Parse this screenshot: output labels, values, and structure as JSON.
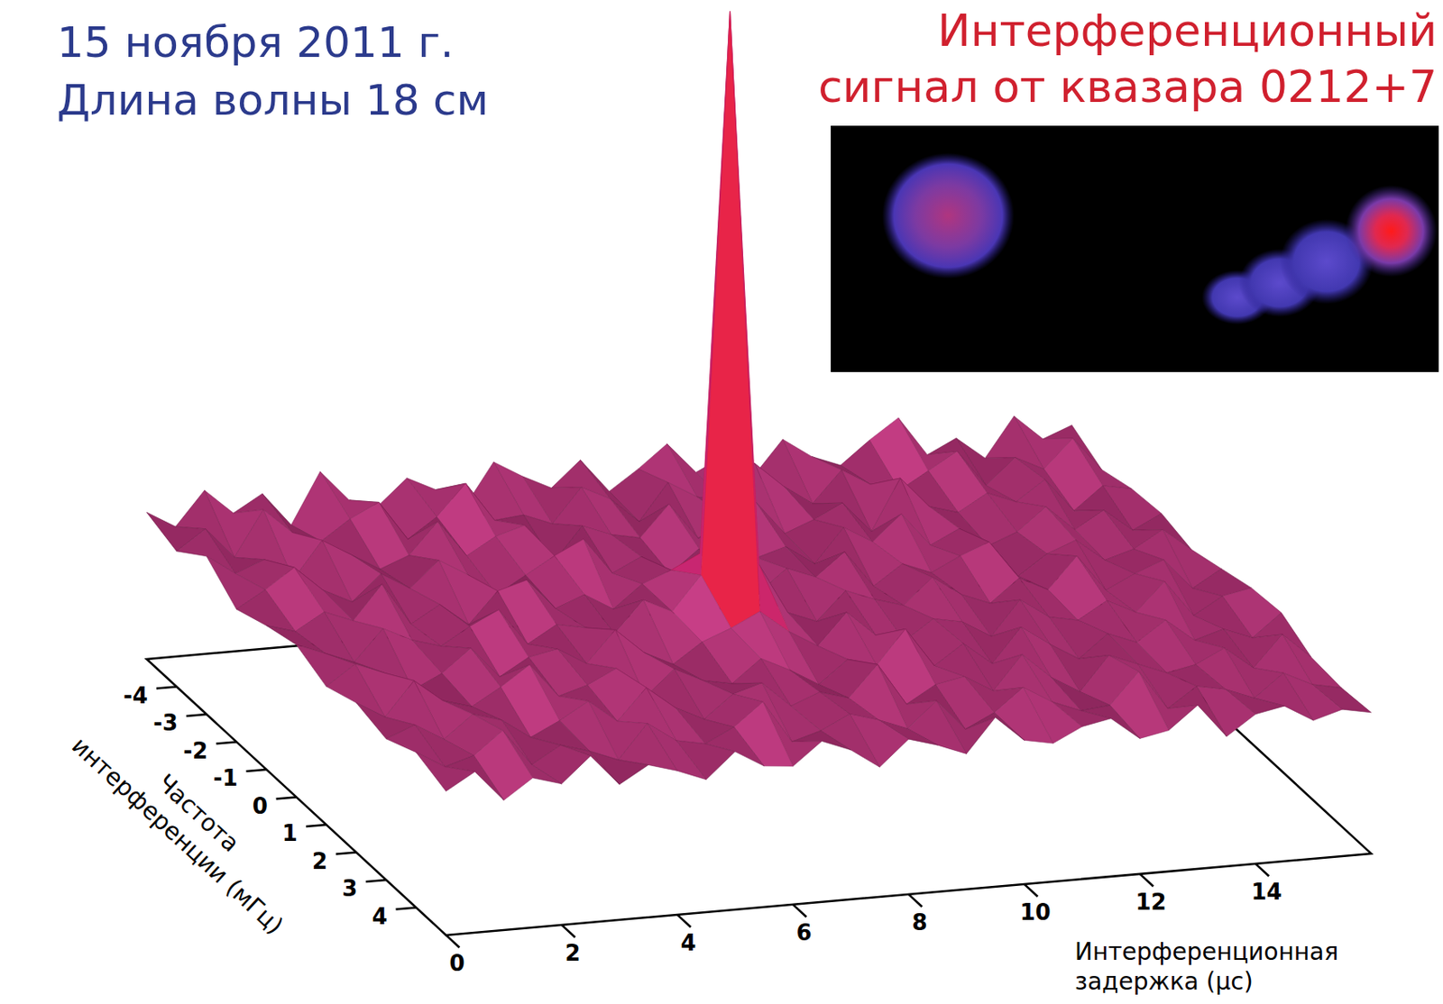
{
  "chart_data": {
    "type": "surface",
    "title": "Интерференционный сигнал от квазара 0212+7",
    "annotations": [
      "15 ноября 2011 г.",
      "Длина волны 18 см"
    ],
    "x_label": "Интерференционная задержка (μс)",
    "y_label": "Частота интерференции (мГц)",
    "xlim": [
      0,
      16
    ],
    "xticks": [
      0,
      2,
      4,
      6,
      8,
      10,
      12,
      14
    ],
    "ylim": [
      -5,
      5
    ],
    "yticks": [
      -4,
      -3,
      -2,
      -1,
      0,
      1,
      2,
      3,
      4
    ],
    "zlim": [
      0,
      27
    ],
    "x": [
      0,
      0.5,
      1,
      1.5,
      2,
      2.5,
      3,
      3.5,
      4,
      4.5,
      5,
      5.5,
      6,
      6.5,
      7,
      7.5,
      8,
      8.5,
      9,
      9.5,
      10,
      10.5,
      11,
      11.5,
      12,
      12.5,
      13,
      13.5,
      14,
      14.5,
      15,
      15.5,
      16
    ],
    "y": [
      -5,
      -4,
      -3,
      -2,
      -1,
      0,
      1,
      2,
      3,
      4,
      5
    ],
    "z": [
      [
        5.2,
        4.6,
        5.8,
        4.9,
        5.5,
        4.3,
        6.1,
        5.0,
        4.7,
        5.6,
        5.1,
        4.4,
        5.9,
        5.3,
        4.8,
        5.7,
        4.5,
        5.2,
        6.0,
        4.9,
        5.4,
        4.6,
        5.8,
        5.1,
        4.7,
        5.5,
        6.2,
        4.8,
        5.3,
        4.5,
        5.9,
        5.0,
        5.4
      ],
      [
        4.8,
        5.5,
        4.4,
        6.0,
        5.1,
        4.7,
        5.4,
        5.9,
        4.5,
        5.2,
        6.3,
        4.9,
        5.0,
        4.6,
        5.8,
        5.3,
        4.4,
        5.7,
        5.1,
        4.8,
        6.1,
        5.2,
        4.5,
        5.6,
        5.0,
        4.7,
        5.3,
        5.9,
        4.6,
        5.5,
        5.0,
        6.0,
        4.8
      ],
      [
        5.6,
        4.9,
        5.3,
        4.5,
        5.8,
        5.2,
        4.6,
        5.0,
        6.1,
        4.8,
        5.4,
        5.7,
        4.3,
        5.5,
        5.1,
        4.9,
        6.0,
        4.7,
        5.3,
        5.8,
        4.6,
        5.0,
        5.5,
        4.4,
        6.2,
        5.1,
        4.8,
        5.4,
        5.0,
        5.7,
        4.5,
        5.3,
        5.1
      ],
      [
        4.7,
        5.3,
        6.0,
        5.1,
        4.6,
        5.5,
        4.9,
        5.8,
        5.2,
        4.4,
        5.0,
        5.6,
        6.1,
        4.8,
        5.3,
        4.6,
        5.4,
        5.9,
        4.9,
        5.2,
        4.5,
        5.7,
        5.1,
        6.0,
        4.8,
        5.3,
        4.6,
        5.0,
        5.8,
        4.9,
        5.5,
        4.7,
        5.2
      ],
      [
        5.1,
        4.8,
        5.4,
        5.0,
        6.2,
        4.7,
        5.3,
        4.5,
        5.6,
        5.9,
        4.8,
        5.2,
        4.6,
        5.4,
        5.8,
        6.3,
        5.0,
        4.7,
        5.5,
        5.1,
        5.9,
        4.6,
        5.3,
        4.9,
        5.4,
        5.8,
        4.5,
        5.2,
        5.6,
        4.8,
        5.1,
        5.7,
        4.9
      ],
      [
        5.4,
        5.0,
        4.6,
        5.7,
        5.2,
        4.9,
        5.5,
        6.0,
        4.7,
        5.3,
        5.1,
        4.8,
        5.9,
        5.4,
        6.6,
        26.5,
        6.8,
        5.0,
        4.6,
        5.6,
        5.2,
        4.9,
        5.8,
        5.1,
        4.7,
        5.5,
        5.0,
        6.1,
        4.8,
        5.3,
        5.7,
        4.6,
        5.2
      ],
      [
        4.9,
        5.6,
        5.2,
        4.5,
        5.0,
        5.8,
        4.7,
        5.3,
        5.5,
        4.9,
        6.0,
        5.1,
        4.6,
        5.3,
        5.7,
        6.2,
        5.4,
        4.8,
        5.9,
        5.0,
        4.7,
        5.4,
        5.2,
        4.6,
        5.8,
        5.1,
        4.9,
        5.5,
        5.0,
        6.0,
        4.7,
        5.3,
        5.5
      ],
      [
        5.3,
        4.7,
        5.9,
        5.1,
        4.8,
        5.4,
        6.1,
        4.9,
        5.2,
        5.7,
        4.6,
        5.5,
        5.0,
        4.8,
        5.6,
        5.1,
        4.5,
        5.3,
        5.0,
        6.2,
        4.8,
        5.5,
        4.7,
        5.9,
        5.2,
        4.6,
        5.4,
        5.0,
        5.7,
        4.9,
        5.2,
        4.8,
        5.6
      ],
      [
        5.0,
        5.4,
        4.8,
        5.6,
        5.3,
        4.6,
        5.1,
        5.7,
        4.9,
        6.0,
        5.2,
        4.7,
        5.5,
        5.8,
        4.9,
        5.3,
        5.0,
        6.1,
        4.6,
        5.2,
        5.4,
        4.8,
        6.0,
        5.1,
        4.5,
        5.7,
        5.3,
        4.9,
        5.1,
        5.6,
        4.8,
        5.9,
        5.0
      ],
      [
        5.5,
        4.9,
        5.2,
        6.0,
        4.7,
        5.3,
        5.0,
        4.6,
        5.8,
        5.1,
        4.9,
        5.4,
        6.2,
        4.7,
        5.0,
        5.5,
        5.2,
        4.8,
        5.7,
        4.6,
        5.1,
        5.9,
        5.3,
        4.9,
        5.0,
        6.1,
        4.7,
        5.4,
        5.2,
        4.8,
        5.6,
        5.1,
        4.9
      ],
      [
        5.1,
        5.7,
        4.6,
        5.3,
        5.0,
        5.9,
        4.8,
        5.4,
        5.1,
        4.7,
        5.6,
        5.0,
        4.9,
        5.7,
        5.3,
        4.6,
        5.5,
        5.2,
        4.8,
        6.0,
        5.1,
        4.9,
        5.4,
        5.6,
        4.8,
        5.0,
        5.8,
        4.6,
        5.3,
        5.5,
        4.9,
        5.2,
        5.0
      ]
    ]
  }
}
